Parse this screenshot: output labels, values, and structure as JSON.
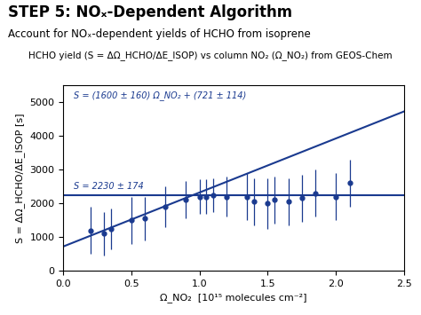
{
  "chart_data": {
    "type": "scatter",
    "title": "STEP 5: NOₓ-Dependent Algorithm",
    "subtitle": "Account for NOₓ-dependent yields of HCHO from isoprene",
    "header": "HCHO yield (S = ΔΩ_HCHO/ΔE_ISOP) vs column NO₂ (Ω_NO₂) from GEOS-Chem",
    "x_label": "Ω_NO₂  [10¹⁵ molecules cm⁻²]",
    "y_label": "S = ΔΩ_HCHO/ΔE_ISOP [s]",
    "x": [
      0.2,
      0.3,
      0.35,
      0.5,
      0.6,
      0.75,
      0.9,
      1.0,
      1.05,
      1.1,
      1.2,
      1.35,
      1.4,
      1.5,
      1.55,
      1.65,
      1.75,
      1.85,
      2.0,
      2.1
    ],
    "series": [
      {
        "color": "#1a3a8f",
        "marker": "circle",
        "values": [
          1200,
          1100,
          1250,
          1500,
          1550,
          1900,
          2100,
          2200,
          2200,
          2250,
          2200,
          2200,
          2050,
          2000,
          2100,
          2050,
          2150,
          2300,
          2200,
          2600
        ],
        "errors": [
          700,
          650,
          600,
          700,
          650,
          600,
          550,
          500,
          500,
          500,
          600,
          700,
          700,
          750,
          700,
          700,
          700,
          700,
          700,
          700
        ]
      }
    ],
    "fit": {
      "x": [
        0.0,
        2.5
      ],
      "values": [
        721,
        4721
      ],
      "color": "#1a3a8f",
      "label": "S = (1600 ± 160) Ω_NO₂ + (721 ± 114)"
    },
    "mean": {
      "value": 2230,
      "color": "#1a3a8f",
      "label": "S = 2230 ± 174"
    },
    "xlim": [
      0.0,
      2.5
    ],
    "ylim": [
      0,
      5500
    ],
    "xticks": [
      0.0,
      0.5,
      1.0,
      1.5,
      2.0,
      2.5
    ],
    "yticks": [
      0,
      1000,
      2000,
      3000,
      4000,
      5000
    ],
    "grid": false
  }
}
